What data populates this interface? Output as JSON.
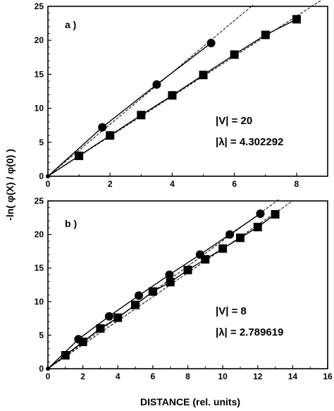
{
  "figure": {
    "xlabel": "DISTANCE (rel. units)",
    "ylabel": "-ln( φ(X) / φ(0) )"
  },
  "chart_data": [
    {
      "type": "line",
      "panel_label": "a )",
      "annotation_v": "|V| = 20",
      "annotation_lambda": "|λ| = 4.302292",
      "xlim": [
        0,
        9
      ],
      "ylim": [
        0,
        25
      ],
      "xticks": [
        0,
        2,
        4,
        6,
        8
      ],
      "yticks": [
        0,
        5,
        10,
        15,
        20,
        25
      ],
      "grid": false,
      "series": [
        {
          "marker": "circle",
          "x": [
            0,
            1.75,
            3.5,
            5.25
          ],
          "y": [
            0,
            7.2,
            13.5,
            19.6
          ]
        },
        {
          "marker": "square",
          "x": [
            0,
            1,
            2,
            3,
            4,
            5,
            6,
            7,
            8
          ],
          "y": [
            0,
            3.0,
            6.0,
            9.0,
            11.9,
            14.9,
            17.9,
            20.8,
            23.1
          ]
        }
      ],
      "fit_lines": [
        {
          "x": [
            0,
            6.6
          ],
          "y": [
            0,
            25.2
          ],
          "style": "dashed"
        },
        {
          "x": [
            0,
            9
          ],
          "y": [
            0,
            26.5
          ],
          "style": "dashed"
        }
      ]
    },
    {
      "type": "line",
      "panel_label": "b )",
      "annotation_v": "|V| = 8",
      "annotation_lambda": "|λ| = 2.789619",
      "xlim": [
        0,
        16
      ],
      "ylim": [
        0,
        25
      ],
      "xticks": [
        0,
        2,
        4,
        6,
        8,
        10,
        12,
        14,
        16
      ],
      "yticks": [
        0,
        5,
        10,
        15,
        20,
        25
      ],
      "grid": false,
      "series": [
        {
          "marker": "circle",
          "x": [
            0,
            1.75,
            3.5,
            5.2,
            6.95,
            8.7,
            10.4,
            12.15
          ],
          "y": [
            0,
            4.4,
            7.8,
            10.9,
            14.0,
            17.0,
            20.0,
            23.1
          ]
        },
        {
          "marker": "square",
          "x": [
            0,
            1,
            2,
            3,
            4,
            5,
            6,
            7,
            8,
            9,
            10,
            11,
            12,
            13
          ],
          "y": [
            0,
            2.0,
            4.0,
            6.0,
            7.6,
            9.5,
            11.5,
            12.9,
            14.7,
            16.3,
            17.9,
            19.5,
            21.1,
            23.0
          ]
        }
      ],
      "fit_lines": [
        {
          "x": [
            0,
            13.2
          ],
          "y": [
            0,
            25.2
          ],
          "style": "dashed"
        },
        {
          "x": [
            0,
            14.0
          ],
          "y": [
            0,
            25.0
          ],
          "style": "dashed"
        }
      ]
    }
  ]
}
